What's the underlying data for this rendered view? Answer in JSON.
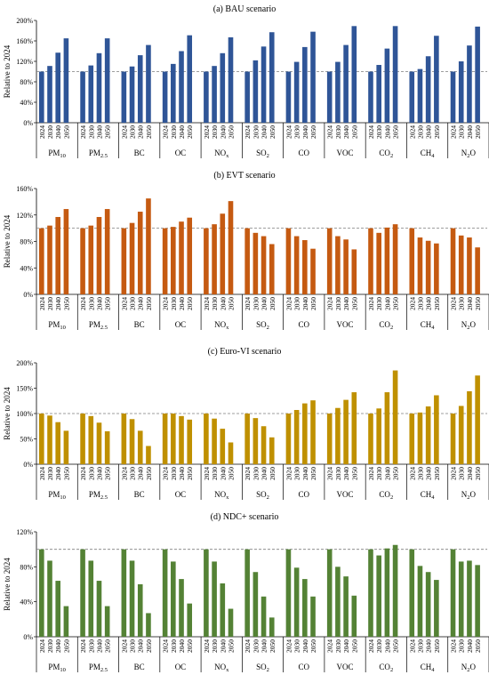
{
  "years": [
    "2024",
    "2030",
    "2040",
    "2050"
  ],
  "pollutants": [
    {
      "base": "PM",
      "sub": "10"
    },
    {
      "base": "PM",
      "sub": "2.5"
    },
    {
      "base": "BC",
      "sub": ""
    },
    {
      "base": "OC",
      "sub": ""
    },
    {
      "base": "NO",
      "sub": "x"
    },
    {
      "base": "SO",
      "sub": "2"
    },
    {
      "base": "CO",
      "sub": ""
    },
    {
      "base": "VOC",
      "sub": ""
    },
    {
      "base": "CO",
      "sub": "2"
    },
    {
      "base": "CH",
      "sub": "4"
    },
    {
      "base": "N",
      "sub": "2",
      "tail": "O"
    }
  ],
  "chart_data": [
    {
      "type": "bar",
      "title": "(a) BAU scenario",
      "ylabel": "Relative to 2024",
      "color": "#2f5597",
      "ylim": [
        0,
        200
      ],
      "yticks": [
        "0%",
        "40%",
        "80%",
        "120%",
        "160%",
        "200%"
      ],
      "reference_line": 100,
      "categories": [
        "PM10",
        "PM2.5",
        "BC",
        "OC",
        "NOx",
        "SO2",
        "CO",
        "VOC",
        "CO2",
        "CH4",
        "N2O"
      ],
      "x_sublabels": [
        "2024",
        "2030",
        "2040",
        "2050"
      ],
      "values": [
        [
          100,
          111,
          137,
          165
        ],
        [
          100,
          112,
          136,
          165
        ],
        [
          100,
          110,
          132,
          152
        ],
        [
          100,
          115,
          140,
          171
        ],
        [
          100,
          111,
          136,
          167
        ],
        [
          100,
          122,
          149,
          177
        ],
        [
          100,
          119,
          148,
          178
        ],
        [
          100,
          119,
          152,
          189
        ],
        [
          100,
          113,
          145,
          189
        ],
        [
          100,
          105,
          130,
          170
        ],
        [
          100,
          120,
          151,
          188
        ]
      ]
    },
    {
      "type": "bar",
      "title": "(b) EVT scenario",
      "ylabel": "Relative to 2024",
      "color": "#c55a11",
      "ylim": [
        0,
        160
      ],
      "yticks": [
        "0%",
        "40%",
        "80%",
        "120%",
        "160%"
      ],
      "reference_line": 100,
      "categories": [
        "PM10",
        "PM2.5",
        "BC",
        "OC",
        "NOx",
        "SO2",
        "CO",
        "VOC",
        "CO2",
        "CH4",
        "N2O"
      ],
      "x_sublabels": [
        "2024",
        "2030",
        "2040",
        "2050"
      ],
      "values": [
        [
          100,
          104,
          117,
          129
        ],
        [
          100,
          104,
          117,
          129
        ],
        [
          100,
          108,
          125,
          145
        ],
        [
          100,
          102,
          110,
          116
        ],
        [
          100,
          106,
          122,
          141
        ],
        [
          100,
          93,
          88,
          76
        ],
        [
          100,
          88,
          82,
          69
        ],
        [
          100,
          88,
          83,
          68
        ],
        [
          100,
          93,
          101,
          106
        ],
        [
          100,
          86,
          81,
          77
        ],
        [
          100,
          89,
          86,
          71
        ]
      ]
    },
    {
      "type": "bar",
      "title": "(c) Euro-VI scenario",
      "ylabel": "Relative to 2024",
      "color": "#bf9000",
      "ylim": [
        0,
        200
      ],
      "yticks": [
        "0%",
        "50%",
        "100%",
        "150%",
        "200%"
      ],
      "reference_line": 100,
      "categories": [
        "PM10",
        "PM2.5",
        "BC",
        "OC",
        "NOx",
        "SO2",
        "CO",
        "VOC",
        "CO2",
        "CH4",
        "N2O"
      ],
      "x_sublabels": [
        "2024",
        "2030",
        "2040",
        "2050"
      ],
      "values": [
        [
          100,
          96,
          83,
          66
        ],
        [
          100,
          95,
          82,
          65
        ],
        [
          100,
          89,
          66,
          36
        ],
        [
          100,
          100,
          95,
          88
        ],
        [
          100,
          90,
          70,
          43
        ],
        [
          100,
          91,
          75,
          53
        ],
        [
          100,
          107,
          120,
          126
        ],
        [
          100,
          111,
          127,
          142
        ],
        [
          100,
          110,
          142,
          185
        ],
        [
          100,
          102,
          114,
          136
        ],
        [
          100,
          115,
          144,
          175
        ]
      ]
    },
    {
      "type": "bar",
      "title": "(d) NDC+ scenario",
      "ylabel": "Relative to 2024",
      "color": "#548235",
      "ylim": [
        0,
        120
      ],
      "yticks": [
        "0%",
        "40%",
        "80%",
        "120%"
      ],
      "reference_line": 100,
      "categories": [
        "PM10",
        "PM2.5",
        "BC",
        "OC",
        "NOx",
        "SO2",
        "CO",
        "VOC",
        "CO2",
        "CH4",
        "N2O"
      ],
      "x_sublabels": [
        "2024",
        "2030",
        "2040",
        "2050"
      ],
      "values": [
        [
          100,
          87,
          64,
          35
        ],
        [
          100,
          87,
          64,
          35
        ],
        [
          100,
          87,
          60,
          27
        ],
        [
          100,
          86,
          66,
          38
        ],
        [
          100,
          86,
          61,
          32
        ],
        [
          100,
          74,
          46,
          22
        ],
        [
          100,
          79,
          66,
          46
        ],
        [
          100,
          80,
          69,
          47
        ],
        [
          100,
          93,
          101,
          105
        ],
        [
          100,
          81,
          74,
          65
        ],
        [
          100,
          86,
          87,
          82
        ]
      ]
    }
  ]
}
